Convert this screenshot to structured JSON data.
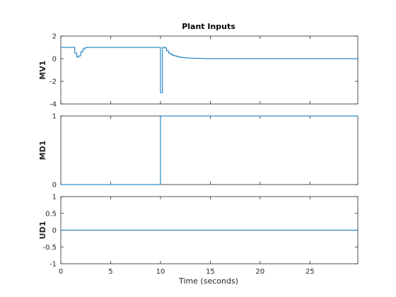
{
  "chart_data": {
    "type": "line",
    "title": "Plant Inputs",
    "xlabel": "Time (seconds)",
    "xlim": [
      0,
      29.8
    ],
    "xticks": [
      0,
      5,
      10,
      15,
      20,
      25
    ],
    "xtick_labels": [
      "0",
      "5",
      "10",
      "15",
      "20",
      "25"
    ],
    "line_color": "#0072bd",
    "subplots": [
      {
        "name": "MV1",
        "ylabel": "MV1",
        "ylim": [
          -4,
          2
        ],
        "yticks": [
          -4,
          -2,
          0,
          2
        ],
        "ytick_labels": [
          "-4",
          "-2",
          "0",
          "2"
        ],
        "style": "stairs",
        "x": [
          0,
          1.4,
          1.6,
          1.8,
          2.0,
          2.2,
          2.4,
          2.6,
          2.8,
          10.0,
          10.2,
          10.4,
          10.6,
          10.8,
          11.0,
          11.2,
          11.4,
          11.6,
          11.8,
          12.0,
          12.2,
          12.4,
          12.6,
          12.8,
          13.0,
          13.4,
          13.8,
          14.4,
          29.8
        ],
        "y": [
          1.0,
          0.5,
          0.15,
          0.25,
          0.6,
          0.85,
          0.95,
          1.0,
          1.0,
          -3.0,
          1.0,
          0.95,
          0.7,
          0.5,
          0.4,
          0.3,
          0.25,
          0.2,
          0.15,
          0.12,
          0.1,
          0.08,
          0.07,
          0.06,
          0.05,
          0.04,
          0.02,
          0.0,
          0.0
        ]
      },
      {
        "name": "MD1",
        "ylabel": "MD1",
        "ylim": [
          0,
          1
        ],
        "yticks": [
          0,
          1
        ],
        "ytick_labels": [
          "0",
          "1"
        ],
        "style": "stairs",
        "x": [
          0,
          10.0,
          29.8
        ],
        "y": [
          0,
          1,
          1
        ]
      },
      {
        "name": "UD1",
        "ylabel": "UD1",
        "ylim": [
          -1,
          1
        ],
        "yticks": [
          -1,
          -0.5,
          0,
          0.5,
          1
        ],
        "ytick_labels": [
          "-1",
          "-0.5",
          "0",
          "0.5",
          "1"
        ],
        "style": "stairs",
        "x": [
          0,
          29.8
        ],
        "y": [
          0,
          0
        ]
      }
    ]
  }
}
